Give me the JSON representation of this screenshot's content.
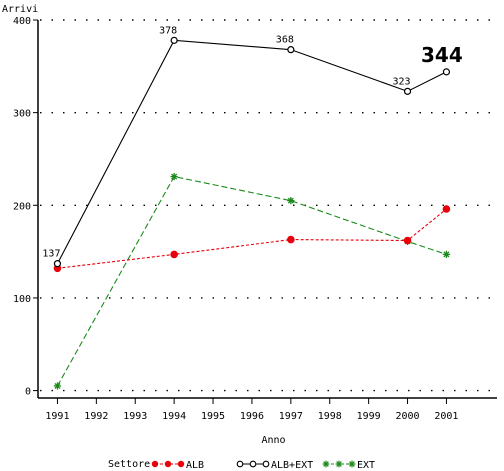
{
  "chart_data": {
    "type": "line",
    "ylabel": "Arrivi",
    "xlabel": "Anno",
    "x_ticks": [
      "1991",
      "1992",
      "1993",
      "1994",
      "1995",
      "1996",
      "1997",
      "1998",
      "1999",
      "2000",
      "2001"
    ],
    "y_ticks": [
      "0",
      "100",
      "200",
      "300",
      "400"
    ],
    "xlim": [
      1990.5,
      2002.3
    ],
    "ylim": [
      -8,
      400
    ],
    "grid": "horizontal-dotted",
    "legend_title": "Settore",
    "legend_position": "bottom",
    "series": [
      {
        "name": "ALB",
        "color": "#e8000b",
        "marker": "filled-circle",
        "line": "dashed",
        "x": [
          1991,
          1994,
          1997,
          2000,
          2001
        ],
        "y": [
          132,
          147,
          163,
          162,
          196
        ]
      },
      {
        "name": "ALB+EXT",
        "color": "#000000",
        "marker": "open-circle",
        "line": "solid",
        "x": [
          1991,
          1994,
          1997,
          2000,
          2001
        ],
        "y": [
          137,
          378,
          368,
          323,
          344
        ]
      },
      {
        "name": "EXT",
        "color": "#1a8a1a",
        "marker": "star",
        "line": "dashed",
        "x": [
          1991,
          1994,
          1997,
          2000,
          2001
        ],
        "y": [
          5,
          231,
          205,
          161,
          147
        ]
      }
    ],
    "data_labels": [
      {
        "series": "ALB+EXT",
        "x": 1991,
        "text": "137"
      },
      {
        "series": "ALB+EXT",
        "x": 1994,
        "text": "378"
      },
      {
        "series": "ALB+EXT",
        "x": 1997,
        "text": "368"
      },
      {
        "series": "ALB+EXT",
        "x": 2000,
        "text": "323"
      }
    ],
    "annotation": "344"
  }
}
